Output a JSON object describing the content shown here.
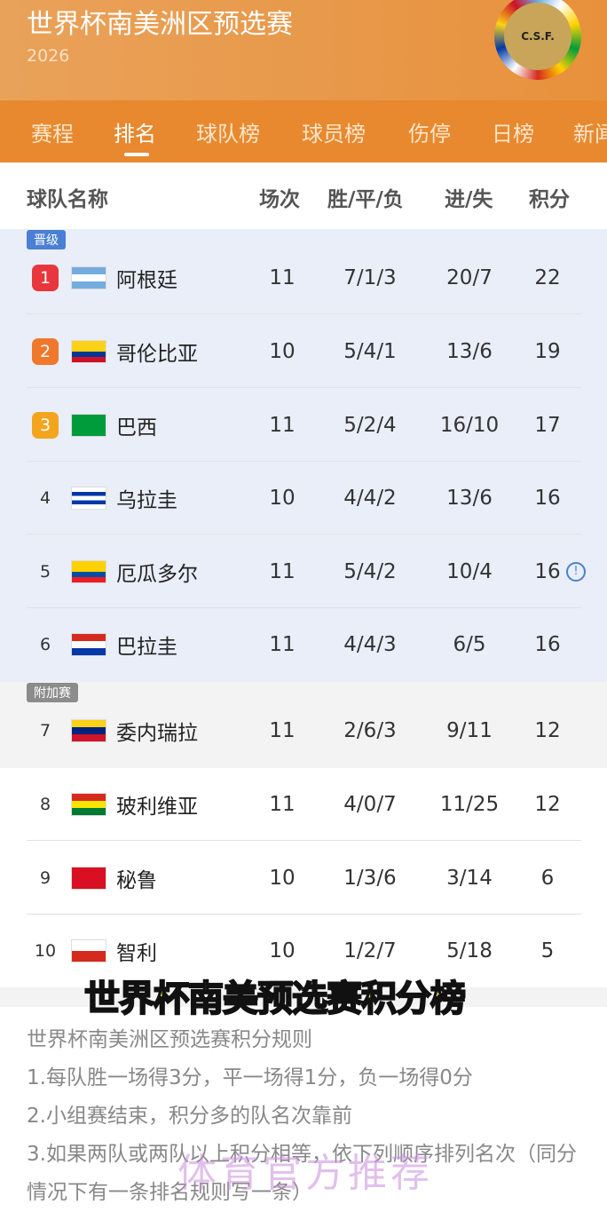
{
  "header": {
    "title": "世界杯南美洲区预选赛",
    "year": "2026",
    "logo_text": "C.S.F."
  },
  "tabs": [
    "赛程",
    "排名",
    "球队榜",
    "球员榜",
    "伤停",
    "日榜",
    "新闻"
  ],
  "active_tab": 1,
  "table_header": {
    "team": "球队名称",
    "played": "场次",
    "wdl": "胜/平/负",
    "goals": "进/失",
    "points": "积分"
  },
  "zones": {
    "qualified": "晋级",
    "playoff": "附加赛"
  },
  "rank_colors": [
    "#e8363c",
    "#f0782a",
    "#f3a51e"
  ],
  "rows": [
    {
      "rank": "1",
      "team": "阿根廷",
      "played": "11",
      "wdl": "7/1/3",
      "goals": "20/7",
      "points": "22",
      "flag": [
        "#74acdf",
        "#fff",
        "#74acdf"
      ]
    },
    {
      "rank": "2",
      "team": "哥伦比亚",
      "played": "10",
      "wdl": "5/4/1",
      "goals": "13/6",
      "points": "19",
      "flag": [
        "#fcd116",
        "#fcd116",
        "#003893",
        "#ce1126"
      ]
    },
    {
      "rank": "3",
      "team": "巴西",
      "played": "11",
      "wdl": "5/2/4",
      "goals": "16/10",
      "points": "17",
      "flag": [
        "#009c3b"
      ]
    },
    {
      "rank": "4",
      "team": "乌拉圭",
      "played": "10",
      "wdl": "4/4/2",
      "goals": "13/6",
      "points": "16",
      "flag": [
        "#fff",
        "#0038a8",
        "#fff",
        "#0038a8",
        "#fff"
      ]
    },
    {
      "rank": "5",
      "team": "厄瓜多尔",
      "played": "11",
      "wdl": "5/4/2",
      "goals": "10/4",
      "points": "16",
      "flag": [
        "#ffd100",
        "#ffd100",
        "#034ea2",
        "#ed1c24"
      ],
      "info": true
    },
    {
      "rank": "6",
      "team": "巴拉圭",
      "played": "11",
      "wdl": "4/4/3",
      "goals": "6/5",
      "points": "16",
      "flag": [
        "#d52b1e",
        "#fff",
        "#0038a8"
      ]
    },
    {
      "rank": "7",
      "team": "委内瑞拉",
      "played": "11",
      "wdl": "2/6/3",
      "goals": "9/11",
      "points": "12",
      "flag": [
        "#fcd116",
        "#00247d",
        "#cf142b"
      ]
    },
    {
      "rank": "8",
      "team": "玻利维亚",
      "played": "11",
      "wdl": "4/0/7",
      "goals": "11/25",
      "points": "12",
      "flag": [
        "#d52b1e",
        "#f9e300",
        "#007934"
      ]
    },
    {
      "rank": "9",
      "team": "秘鲁",
      "played": "10",
      "wdl": "1/3/6",
      "goals": "3/14",
      "points": "6",
      "flag": [
        "#d91023"
      ]
    },
    {
      "rank": "10",
      "team": "智利",
      "played": "10",
      "wdl": "1/2/7",
      "goals": "5/18",
      "points": "5",
      "flag": [
        "#fff",
        "#d52b1e"
      ]
    }
  ],
  "caption": "世界杯南美预选赛积分榜",
  "rules": [
    "世界杯南美洲区预选赛积分规则",
    "1.每队胜一场得3分，平一场得1分，负一场得0分",
    "2.小组赛结束，积分多的队名次靠前",
    "3.如果两队或两队以上积分相等，依下列顺序排列名次（同分情况下有一条排名规则写一条）"
  ],
  "watermark": "体育官方推荐",
  "colors": {
    "header": "#e8913c",
    "tabs": "#e8892f",
    "qualified_bg": "#e9eef9",
    "qualified_tag": "#4a7fd4",
    "playoff_tag": "#8c8c8c"
  }
}
